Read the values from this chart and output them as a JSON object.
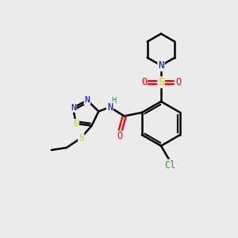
{
  "bg_color": "#ebebeb",
  "atom_colors": {
    "N": "#0000ff",
    "O": "#ff0000",
    "S": "#cccc00",
    "Cl": "#00bb00",
    "C": "#000000",
    "H": "#448888"
  },
  "bond_color": "#000000",
  "bond_width": 1.8,
  "figsize": [
    3.0,
    3.0
  ],
  "dpi": 100
}
